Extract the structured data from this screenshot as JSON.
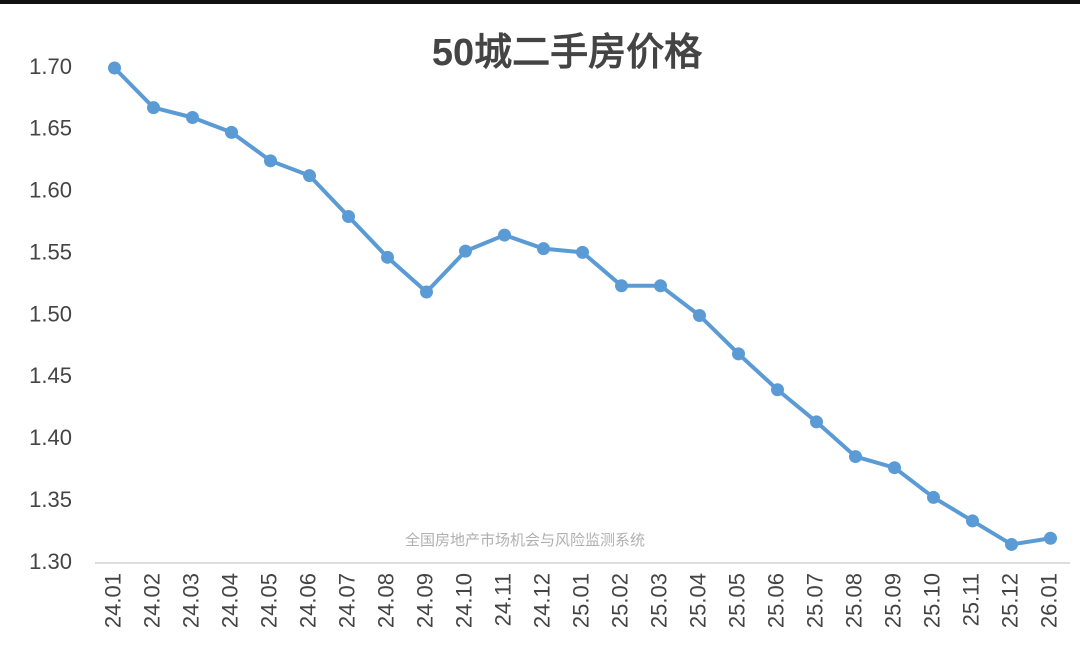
{
  "chart_data": {
    "type": "line",
    "title": "50城二手房价格",
    "watermark": "全国房地产市场机会与风险监测系统",
    "categories": [
      "24.01",
      "24.02",
      "24.03",
      "24.04",
      "24.05",
      "24.06",
      "24.07",
      "24.08",
      "24.09",
      "24.10",
      "24.11",
      "24.12",
      "25.01",
      "25.02",
      "25.03",
      "25.04",
      "25.05",
      "25.06",
      "25.07",
      "25.08",
      "25.09",
      "25.10",
      "25.11",
      "25.12",
      "26.01"
    ],
    "values": [
      1.7,
      1.668,
      1.66,
      1.648,
      1.625,
      1.613,
      1.58,
      1.547,
      1.519,
      1.552,
      1.565,
      1.554,
      1.551,
      1.524,
      1.524,
      1.5,
      1.469,
      1.44,
      1.414,
      1.386,
      1.377,
      1.353,
      1.334,
      1.315,
      1.32
    ],
    "color": "#5b9bd5",
    "ylim": [
      1.3,
      1.7
    ],
    "yticks": [
      {
        "value": 1.3,
        "label": "1.30"
      },
      {
        "value": 1.35,
        "label": "1.35"
      },
      {
        "value": 1.4,
        "label": "1.40"
      },
      {
        "value": 1.45,
        "label": "1.45"
      },
      {
        "value": 1.5,
        "label": "1.50"
      },
      {
        "value": 1.55,
        "label": "1.55"
      },
      {
        "value": 1.6,
        "label": "1.60"
      },
      {
        "value": 1.65,
        "label": "1.65"
      },
      {
        "value": 1.7,
        "label": "1.70"
      }
    ],
    "grid": false
  }
}
